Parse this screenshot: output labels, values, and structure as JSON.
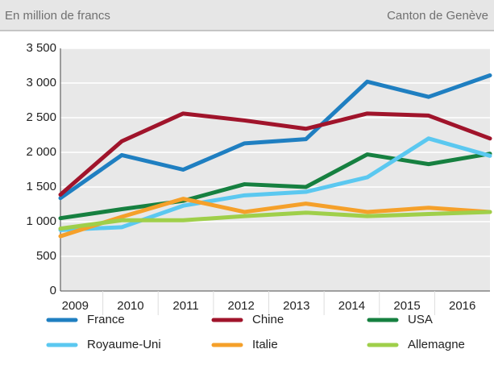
{
  "chart_data": {
    "type": "line",
    "subtitle": "En million de francs",
    "source": "Canton de Genève",
    "categories": [
      "2009",
      "2010",
      "2011",
      "2012",
      "2013",
      "2014",
      "2015",
      "2016"
    ],
    "series": [
      {
        "name": "France",
        "color": "#1f7fc1",
        "values": [
          1340,
          1960,
          1750,
          2130,
          2190,
          3020,
          2800,
          3110
        ]
      },
      {
        "name": "Chine",
        "color": "#a0142b",
        "values": [
          1390,
          2160,
          2560,
          2460,
          2340,
          2560,
          2530,
          2200
        ]
      },
      {
        "name": "USA",
        "color": "#168040",
        "values": [
          1050,
          1180,
          1300,
          1540,
          1500,
          1970,
          1830,
          1980
        ]
      },
      {
        "name": "Royaume-Uni",
        "color": "#5bc8f0",
        "values": [
          880,
          920,
          1230,
          1380,
          1430,
          1640,
          2200,
          1950
        ]
      },
      {
        "name": "Italie",
        "color": "#f5a02a",
        "values": [
          790,
          1070,
          1330,
          1140,
          1260,
          1140,
          1200,
          1140
        ]
      },
      {
        "name": "Allemagne",
        "color": "#9fcf4a",
        "values": [
          900,
          1020,
          1020,
          1080,
          1130,
          1080,
          1110,
          1140
        ]
      }
    ],
    "ylim": [
      0,
      3500
    ],
    "yticks": [
      0,
      500,
      {
        "value": 1000,
        "label": "1 000"
      },
      {
        "value": 1500,
        "label": "1 500"
      },
      {
        "value": 2000,
        "label": "2 000"
      },
      {
        "value": 2500,
        "label": "2 500"
      },
      {
        "value": 3000,
        "label": "3 000"
      },
      {
        "value": 3500,
        "label": "3 500"
      }
    ],
    "grid": true
  }
}
